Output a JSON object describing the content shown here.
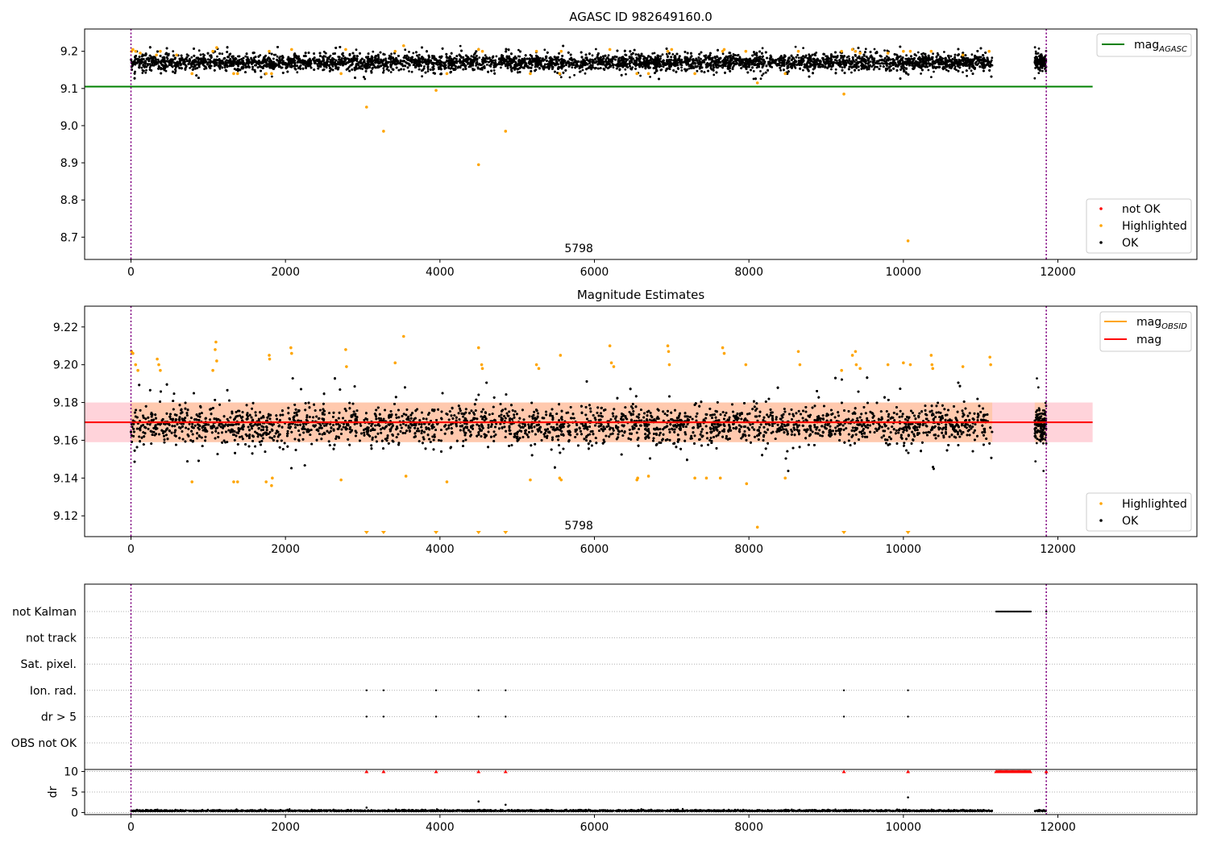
{
  "figure": {
    "top_title": "AGASC ID 982649160.0",
    "mid_title": "Magnitude Estimates",
    "obsid_annotation": "5798"
  },
  "colors": {
    "ok": "#000000",
    "highlighted": "#ffa500",
    "not_ok": "#ff0000",
    "mag_agasc": "#008000",
    "mag_obsid": "#ffa500",
    "mag": "#ff0000",
    "band": "#ffc0cb",
    "marker_line": "#800080",
    "grid": "#b0b0b0"
  },
  "chart_data": [
    {
      "type": "scatter",
      "name": "top",
      "title": "AGASC ID 982649160.0",
      "xlim": [
        -600,
        13800
      ],
      "ylim": [
        8.64,
        9.26
      ],
      "x_ticks": [
        0,
        2000,
        4000,
        6000,
        8000,
        10000,
        12000
      ],
      "y_ticks": [
        8.7,
        8.8,
        8.9,
        9.0,
        9.1,
        9.2
      ],
      "y_tick_labels": [
        "8.7",
        "8.8",
        "8.9",
        "9.0",
        "9.1",
        "9.2"
      ],
      "vlines": [
        0,
        11850
      ],
      "obsid_label": {
        "text": "5798",
        "x": 5798
      },
      "mag_agasc": {
        "value": 9.105,
        "x_range": [
          -600,
          12450
        ]
      },
      "ok_band": {
        "center": 9.17,
        "spread": 0.022
      },
      "segments": [
        [
          0,
          11150
        ],
        [
          11700,
          11850
        ]
      ],
      "highlighted": [
        [
          8,
          9.2
        ],
        [
          25,
          9.205
        ],
        [
          60,
          9.2
        ],
        [
          120,
          9.195
        ],
        [
          330,
          9.19
        ],
        [
          380,
          9.2
        ],
        [
          590,
          9.19
        ],
        [
          790,
          9.14
        ],
        [
          1060,
          9.2
        ],
        [
          1110,
          9.21
        ],
        [
          1330,
          9.14
        ],
        [
          1380,
          9.14
        ],
        [
          1750,
          9.14
        ],
        [
          1790,
          9.2
        ],
        [
          1820,
          9.14
        ],
        [
          2080,
          9.205
        ],
        [
          2720,
          9.14
        ],
        [
          2780,
          9.205
        ],
        [
          3050,
          9.05
        ],
        [
          3270,
          8.985
        ],
        [
          3420,
          9.2
        ],
        [
          3530,
          9.215
        ],
        [
          3950,
          9.095
        ],
        [
          4090,
          9.14
        ],
        [
          4500,
          8.895
        ],
        [
          4500,
          9.205
        ],
        [
          4550,
          9.2
        ],
        [
          4850,
          8.985
        ],
        [
          5170,
          9.14
        ],
        [
          5250,
          9.2
        ],
        [
          5550,
          9.14
        ],
        [
          5570,
          9.2
        ],
        [
          6200,
          9.205
        ],
        [
          6550,
          9.14
        ],
        [
          6700,
          9.14
        ],
        [
          6950,
          9.2
        ],
        [
          7000,
          9.205
        ],
        [
          7300,
          9.14
        ],
        [
          7660,
          9.2
        ],
        [
          7680,
          9.205
        ],
        [
          7960,
          9.2
        ],
        [
          8110,
          9.115
        ],
        [
          8470,
          9.14
        ],
        [
          8640,
          9.2
        ],
        [
          9230,
          9.085
        ],
        [
          9200,
          9.2
        ],
        [
          9340,
          9.205
        ],
        [
          9380,
          9.2
        ],
        [
          9440,
          9.195
        ],
        [
          9800,
          9.195
        ],
        [
          10000,
          9.2
        ],
        [
          10060,
          8.69
        ],
        [
          10090,
          9.2
        ],
        [
          10360,
          9.2
        ],
        [
          10770,
          9.19
        ],
        [
          11110,
          9.2
        ]
      ],
      "legend_lines": [
        {
          "label": "mag",
          "sub": "AGASC",
          "color": "#008000"
        }
      ],
      "legend_points": [
        {
          "label": "not OK",
          "color": "#ff0000"
        },
        {
          "label": "Highlighted",
          "color": "#ffa500"
        },
        {
          "label": "OK",
          "color": "#000000"
        }
      ]
    },
    {
      "type": "scatter",
      "name": "middle",
      "title": "Magnitude Estimates",
      "xlim": [
        -600,
        13800
      ],
      "ylim": [
        9.109,
        9.231
      ],
      "x_ticks": [
        0,
        2000,
        4000,
        6000,
        8000,
        10000,
        12000
      ],
      "y_ticks": [
        9.12,
        9.14,
        9.16,
        9.18,
        9.2,
        9.22
      ],
      "y_tick_labels": [
        "9.12",
        "9.14",
        "9.16",
        "9.18",
        "9.20",
        "9.22"
      ],
      "vlines": [
        0,
        11850
      ],
      "obsid_label": {
        "text": "5798",
        "x": 5798
      },
      "mag": {
        "value": 9.1695,
        "x_range": [
          -600,
          12450
        ]
      },
      "mag_band": [
        9.159,
        9.18
      ],
      "mag_obsid": [
        {
          "x_range": [
            0,
            11150
          ],
          "value": 9.1695
        },
        {
          "x_range": [
            11700,
            11850
          ],
          "value": 9.1695
        }
      ],
      "ok_band": {
        "center": 9.168,
        "spread": 0.01
      },
      "segments": [
        [
          0,
          11150
        ],
        [
          11700,
          11850
        ]
      ],
      "highlighted": [
        [
          8,
          9.207
        ],
        [
          25,
          9.206
        ],
        [
          60,
          9.2
        ],
        [
          90,
          9.197
        ],
        [
          340,
          9.203
        ],
        [
          360,
          9.2
        ],
        [
          380,
          9.197
        ],
        [
          790,
          9.138
        ],
        [
          1060,
          9.197
        ],
        [
          1090,
          9.208
        ],
        [
          1100,
          9.212
        ],
        [
          1110,
          9.202
        ],
        [
          1330,
          9.138
        ],
        [
          1380,
          9.138
        ],
        [
          1750,
          9.138
        ],
        [
          1790,
          9.205
        ],
        [
          1795,
          9.203
        ],
        [
          1820,
          9.136
        ],
        [
          1830,
          9.14
        ],
        [
          2070,
          9.209
        ],
        [
          2080,
          9.206
        ],
        [
          2720,
          9.139
        ],
        [
          2780,
          9.208
        ],
        [
          2790,
          9.199
        ],
        [
          3420,
          9.201
        ],
        [
          3530,
          9.215
        ],
        [
          3560,
          9.141
        ],
        [
          4090,
          9.138
        ],
        [
          4500,
          9.209
        ],
        [
          4540,
          9.2
        ],
        [
          4550,
          9.198
        ],
        [
          5170,
          9.139
        ],
        [
          5250,
          9.2
        ],
        [
          5280,
          9.198
        ],
        [
          5550,
          9.14
        ],
        [
          5560,
          9.205
        ],
        [
          5570,
          9.139
        ],
        [
          6200,
          9.21
        ],
        [
          6220,
          9.201
        ],
        [
          6250,
          9.199
        ],
        [
          6550,
          9.139
        ],
        [
          6560,
          9.14
        ],
        [
          6700,
          9.141
        ],
        [
          6950,
          9.21
        ],
        [
          6960,
          9.207
        ],
        [
          6970,
          9.2
        ],
        [
          7300,
          9.14
        ],
        [
          7450,
          9.14
        ],
        [
          7630,
          9.14
        ],
        [
          7660,
          9.209
        ],
        [
          7680,
          9.206
        ],
        [
          7960,
          9.2
        ],
        [
          7970,
          9.137
        ],
        [
          8110,
          9.114
        ],
        [
          8470,
          9.14
        ],
        [
          8640,
          9.207
        ],
        [
          8660,
          9.2
        ],
        [
          9200,
          9.197
        ],
        [
          9340,
          9.205
        ],
        [
          9380,
          9.207
        ],
        [
          9390,
          9.2
        ],
        [
          9440,
          9.198
        ],
        [
          9800,
          9.2
        ],
        [
          10000,
          9.201
        ],
        [
          10090,
          9.2
        ],
        [
          10360,
          9.205
        ],
        [
          10370,
          9.2
        ],
        [
          10380,
          9.198
        ],
        [
          10770,
          9.199
        ],
        [
          11120,
          9.204
        ],
        [
          11130,
          9.2
        ]
      ],
      "clipped_low": [
        3050,
        3270,
        3950,
        4500,
        4850,
        9230,
        10060
      ],
      "legend_lines": [
        {
          "label": "mag",
          "sub": "OBSID",
          "color": "#ffa500"
        },
        {
          "label": "mag",
          "sub": "",
          "color": "#ff0000"
        }
      ],
      "legend_points": [
        {
          "label": "Highlighted",
          "color": "#ffa500"
        },
        {
          "label": "OK",
          "color": "#000000"
        }
      ]
    },
    {
      "type": "scatter",
      "name": "flags",
      "xlim": [
        -600,
        13800
      ],
      "vlines": [
        0,
        11850
      ],
      "categories": [
        "not Kalman",
        "not track",
        "Sat. pixel.",
        "Ion. rad.",
        "dr > 5",
        "OBS not OK"
      ],
      "flag_points": {
        "not Kalman": {
          "ranges": [
            [
              11200,
              11650
            ]
          ],
          "points": [
            11850
          ]
        },
        "not track": {
          "ranges": [],
          "points": []
        },
        "Sat. pixel.": {
          "ranges": [],
          "points": []
        },
        "Ion. rad.": {
          "ranges": [],
          "points": [
            3050,
            3270,
            3950,
            4500,
            4850,
            9230,
            10060
          ]
        },
        "dr > 5": {
          "ranges": [],
          "points": [
            3050,
            3270,
            3950,
            4500,
            4850,
            9230,
            10060
          ]
        },
        "OBS not OK": {
          "ranges": [],
          "points": []
        }
      }
    },
    {
      "type": "scatter",
      "name": "dr",
      "ylabel": "dr",
      "xlim": [
        -600,
        13800
      ],
      "ylim": [
        -0.5,
        10.5
      ],
      "x_ticks": [
        0,
        2000,
        4000,
        6000,
        8000,
        10000,
        12000
      ],
      "y_ticks": [
        0,
        5,
        10
      ],
      "y_tick_labels": [
        "0",
        "5",
        "10"
      ],
      "vlines": [
        0,
        11850
      ],
      "ok_band": {
        "center": 0.3,
        "spread": 0.15
      },
      "segments": [
        [
          0,
          11150
        ],
        [
          11700,
          11850
        ]
      ],
      "ok_points": [
        [
          3050,
          1.2
        ],
        [
          4500,
          2.7
        ],
        [
          4850,
          1.9
        ],
        [
          10060,
          3.7
        ]
      ],
      "not_ok_points": [
        3050,
        3270,
        3950,
        4500,
        4850,
        9230,
        10060,
        11850
      ],
      "not_ok_range": [
        11200,
        11650
      ],
      "not_ok_value": 10
    }
  ]
}
